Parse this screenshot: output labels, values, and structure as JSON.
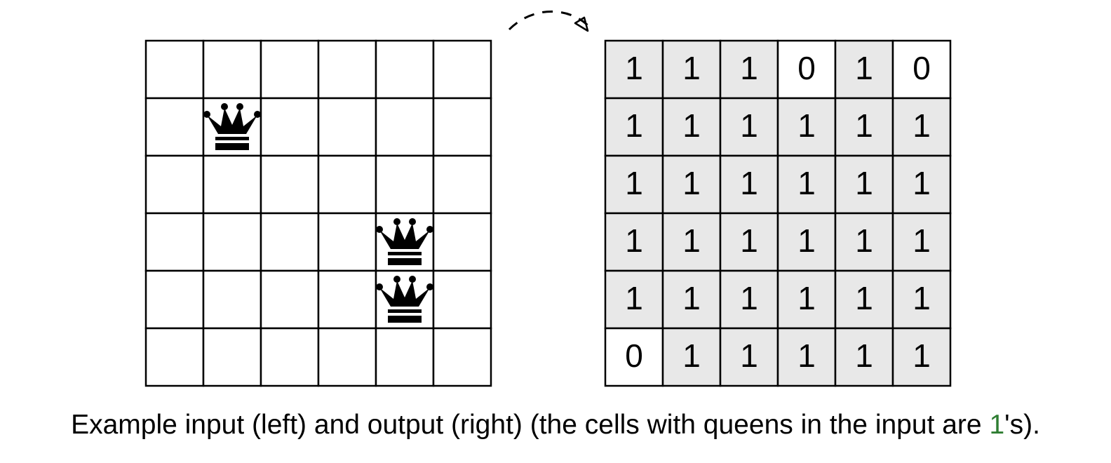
{
  "input_board": {
    "rows": 6,
    "cols": 6,
    "queens": [
      [
        1,
        1
      ],
      [
        3,
        4
      ],
      [
        4,
        4
      ]
    ],
    "queen_icon": "chess-queen-icon"
  },
  "output_board": {
    "rows": 6,
    "cols": 6,
    "values": [
      [
        1,
        1,
        1,
        0,
        1,
        0
      ],
      [
        1,
        1,
        1,
        1,
        1,
        1
      ],
      [
        1,
        1,
        1,
        1,
        1,
        1
      ],
      [
        1,
        1,
        1,
        1,
        1,
        1
      ],
      [
        1,
        1,
        1,
        1,
        1,
        1
      ],
      [
        0,
        1,
        1,
        1,
        1,
        1
      ]
    ],
    "one_fill": "#e8e8e8",
    "zero_fill": "#ffffff"
  },
  "arrow_icon": "dashed-curved-arrow-icon",
  "caption": {
    "before": "Example input (left) and output (right) (the cells with queens in the input are ",
    "highlight": "1",
    "after": "'s).",
    "highlight_color": "#2e7d32"
  }
}
